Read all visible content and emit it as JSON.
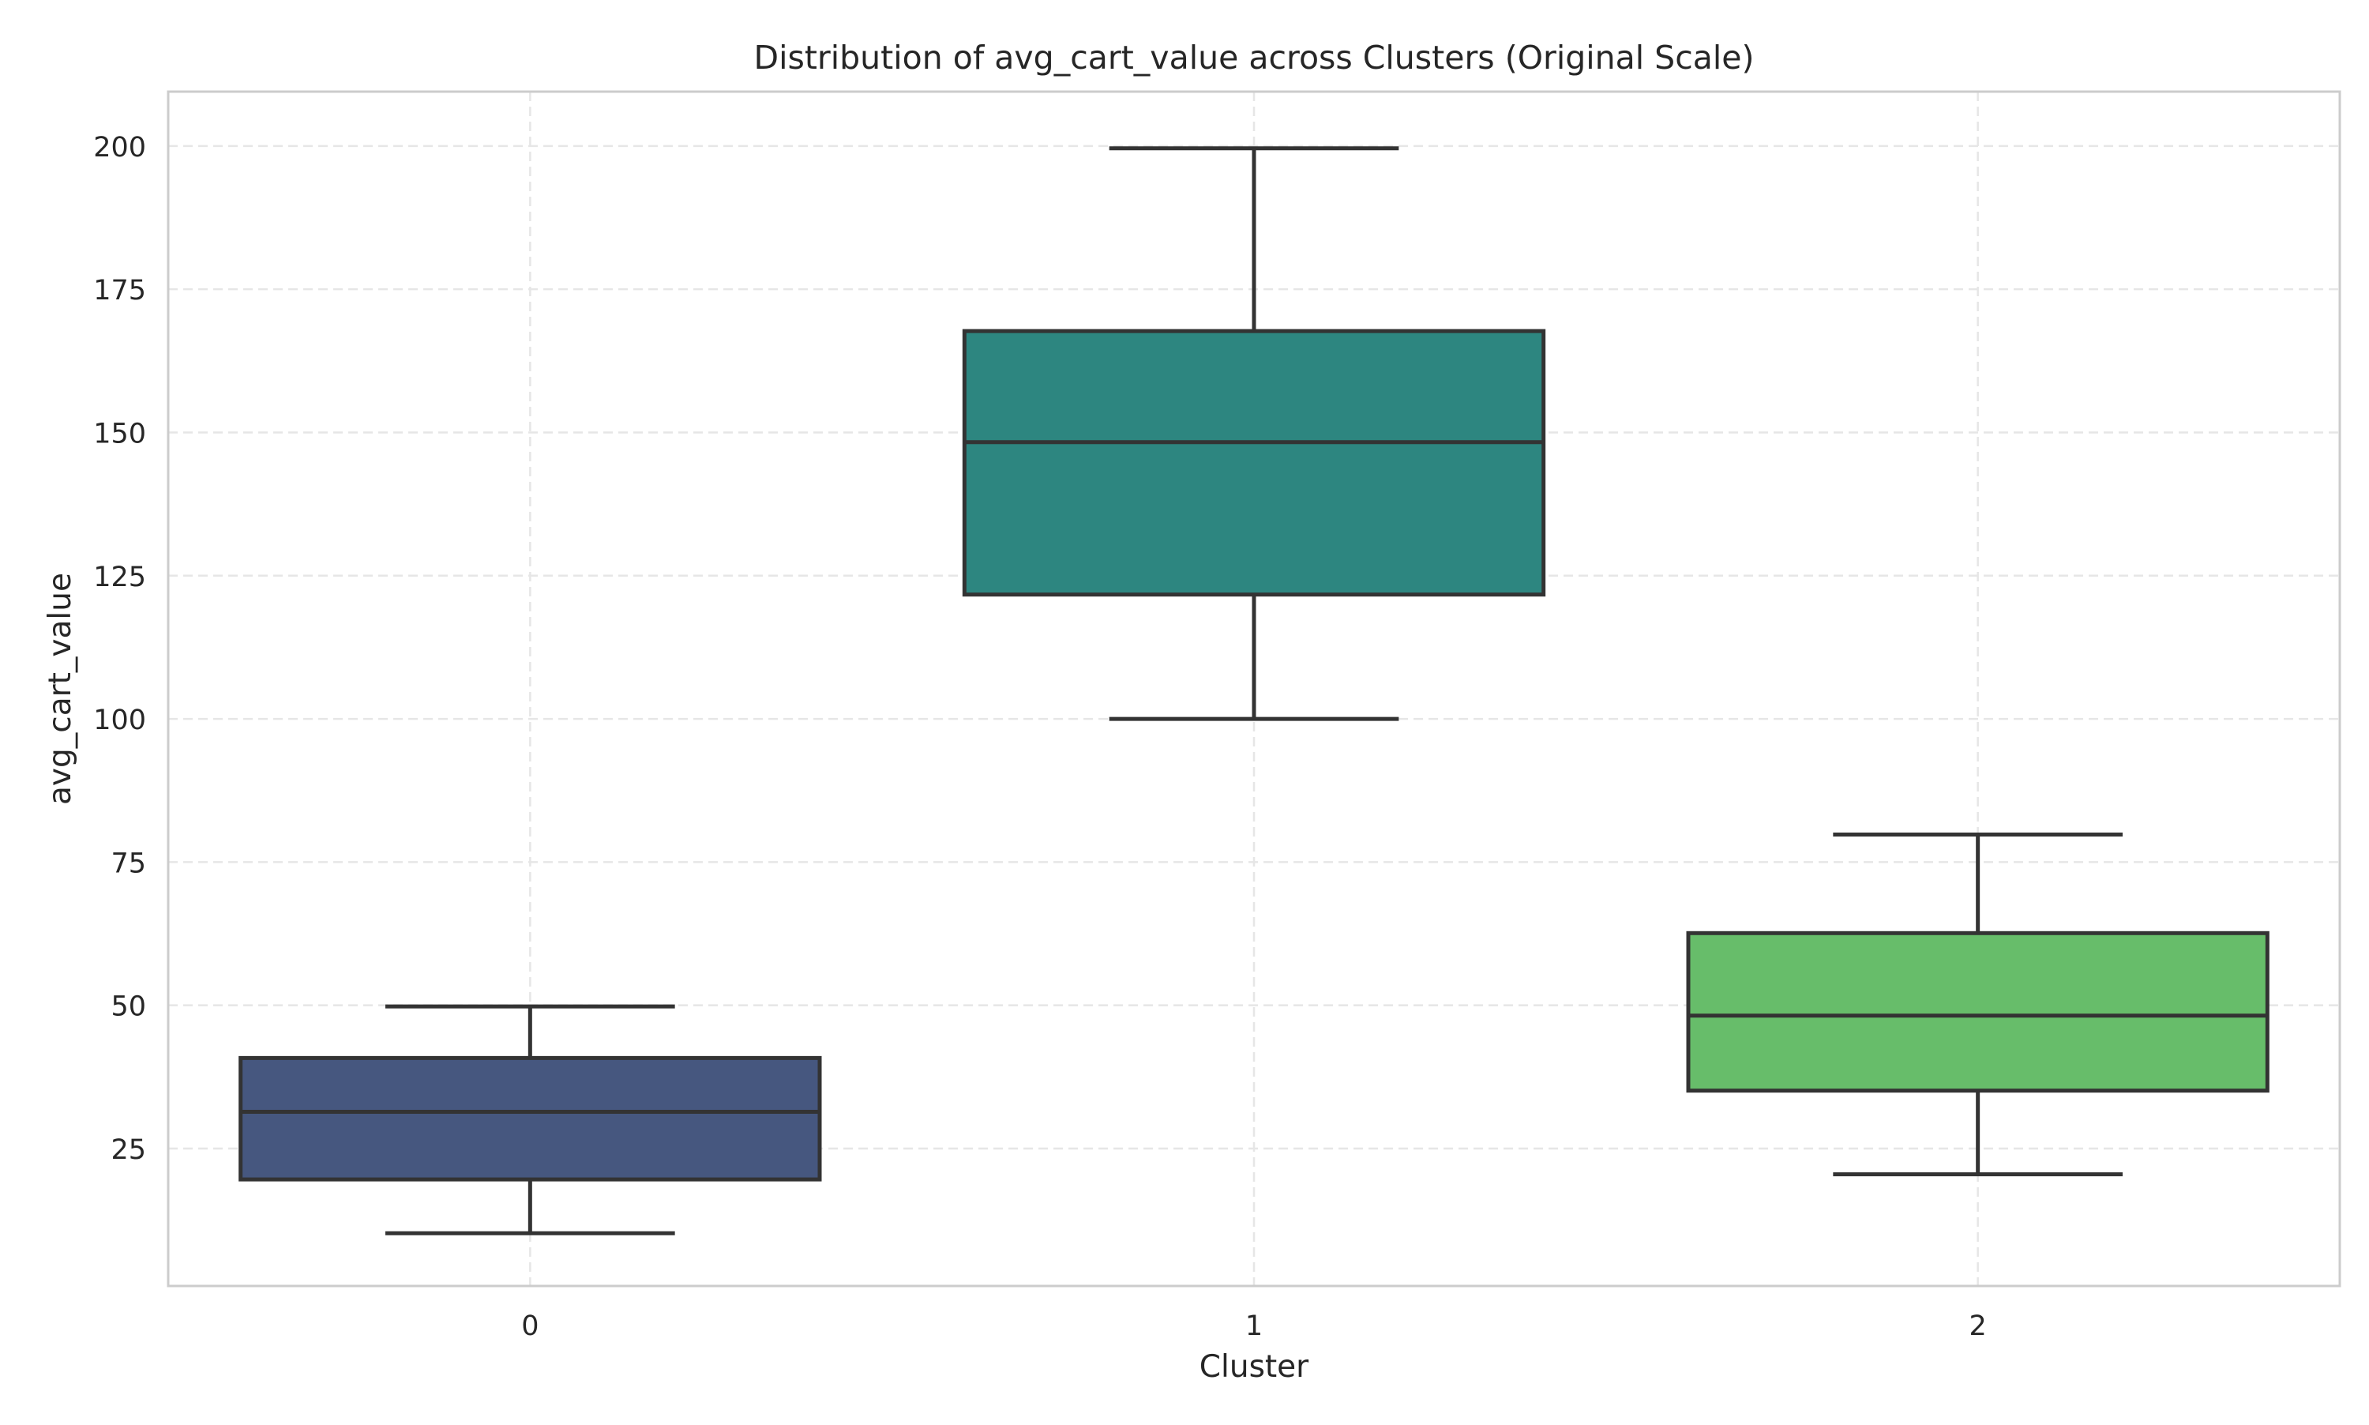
{
  "chart_data": {
    "type": "box",
    "title": "Distribution of avg_cart_value across Clusters (Original Scale)",
    "xlabel": "Cluster",
    "ylabel": "avg_cart_value",
    "categories": [
      "0",
      "1",
      "2"
    ],
    "y_ticks": [
      25,
      50,
      75,
      100,
      125,
      150,
      175,
      200
    ],
    "y_tick_labels": [
      "25",
      "50",
      "75",
      "100",
      "125",
      "150",
      "175",
      "200"
    ],
    "ylim": [
      1,
      209.5
    ],
    "grid": true,
    "boxes": [
      {
        "category": "0",
        "whisker_low": 10.2,
        "q1": 19.6,
        "median": 31.4,
        "q3": 40.8,
        "whisker_high": 49.8,
        "color": "#46577f"
      },
      {
        "category": "1",
        "whisker_low": 100.0,
        "q1": 121.7,
        "median": 148.3,
        "q3": 167.7,
        "whisker_high": 199.6,
        "color": "#2d8680"
      },
      {
        "category": "2",
        "whisker_low": 20.5,
        "q1": 35.1,
        "median": 48.2,
        "q3": 62.6,
        "whisker_high": 79.8,
        "color": "#67bd6a"
      }
    ],
    "colors": {
      "box_edge": "#333333",
      "grid": "#e6e6e6",
      "frame": "#cccccc"
    }
  }
}
